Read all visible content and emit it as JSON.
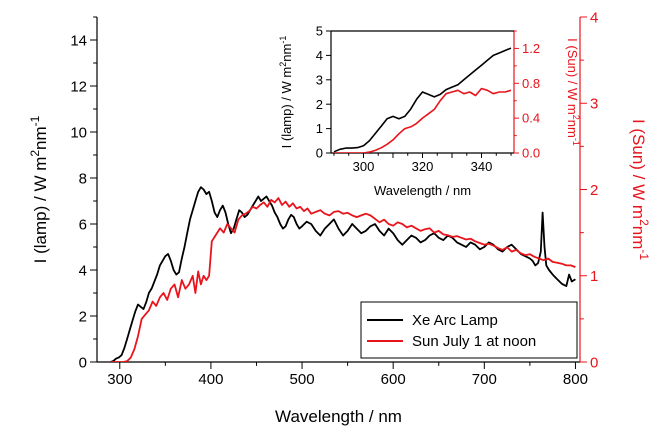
{
  "chart_data": {
    "type": "line",
    "title": "",
    "colors": {
      "lamp": "#000000",
      "sun": "#e8141c"
    },
    "main": {
      "xlabel": "Wavelength / nm",
      "ylabel_left": [
        "I (lamp) / W m",
        "2",
        "nm",
        "-1"
      ],
      "ylabel_right": [
        "I (Sun) / W m",
        "2",
        "nm",
        "-1"
      ],
      "xlim": [
        275,
        805
      ],
      "ylim_left": [
        0,
        15
      ],
      "ylim_right": [
        0,
        4
      ],
      "xticks": [
        300,
        400,
        500,
        600,
        700,
        800
      ],
      "yticks_left": [
        0,
        2,
        4,
        6,
        8,
        10,
        12,
        14
      ],
      "yticks_right": [
        0,
        1,
        2,
        3,
        4
      ],
      "legend_position": "bottom-right",
      "series": [
        {
          "name": "Xe Arc Lamp",
          "axis": "left",
          "x": [
            290,
            293,
            296,
            299,
            302,
            305,
            308,
            311,
            314,
            317,
            320,
            323,
            326,
            329,
            332,
            335,
            338,
            341,
            344,
            347,
            350,
            353,
            356,
            359,
            362,
            365,
            368,
            371,
            374,
            377,
            380,
            383,
            386,
            389,
            392,
            395,
            398,
            401,
            404,
            407,
            410,
            413,
            416,
            419,
            422,
            425,
            428,
            431,
            434,
            437,
            440,
            443,
            446,
            449,
            452,
            455,
            458,
            461,
            464,
            467,
            470,
            473,
            476,
            479,
            482,
            485,
            488,
            491,
            494,
            497,
            500,
            505,
            510,
            515,
            520,
            525,
            530,
            535,
            540,
            545,
            550,
            555,
            560,
            565,
            570,
            575,
            580,
            585,
            590,
            595,
            600,
            605,
            610,
            615,
            620,
            625,
            630,
            635,
            640,
            645,
            650,
            655,
            660,
            665,
            670,
            675,
            680,
            685,
            690,
            695,
            700,
            705,
            710,
            715,
            720,
            725,
            730,
            735,
            740,
            745,
            750,
            753,
            756,
            759,
            762,
            764,
            766,
            768,
            771,
            775,
            780,
            785,
            790,
            793,
            796,
            800
          ],
          "y": [
            0.0,
            0.05,
            0.15,
            0.2,
            0.3,
            0.6,
            1.0,
            1.4,
            1.8,
            2.2,
            2.5,
            2.4,
            2.3,
            2.6,
            3.0,
            3.2,
            3.5,
            3.8,
            4.2,
            4.4,
            4.6,
            4.7,
            4.4,
            4.0,
            3.8,
            3.9,
            4.5,
            5.0,
            5.6,
            6.2,
            6.6,
            7.0,
            7.4,
            7.6,
            7.5,
            7.3,
            7.4,
            7.0,
            6.5,
            6.3,
            6.6,
            6.8,
            6.5,
            6.0,
            5.6,
            5.8,
            6.2,
            6.6,
            6.5,
            6.3,
            6.4,
            6.6,
            6.8,
            7.0,
            7.2,
            7.0,
            7.1,
            7.2,
            7.0,
            6.8,
            6.5,
            6.3,
            6.0,
            5.8,
            5.9,
            6.2,
            6.4,
            6.3,
            6.0,
            5.8,
            5.9,
            6.1,
            6.0,
            5.7,
            5.5,
            5.8,
            6.0,
            6.2,
            5.8,
            5.5,
            5.7,
            6.0,
            5.8,
            5.6,
            5.7,
            5.9,
            6.0,
            5.7,
            5.5,
            5.8,
            5.6,
            5.3,
            5.1,
            5.3,
            5.5,
            5.4,
            5.2,
            5.3,
            5.5,
            5.6,
            5.4,
            5.3,
            5.5,
            5.4,
            5.2,
            5.1,
            5.0,
            5.2,
            5.1,
            4.9,
            5.0,
            5.2,
            5.1,
            4.9,
            4.8,
            5.0,
            5.1,
            4.9,
            4.7,
            4.6,
            4.5,
            4.4,
            4.2,
            4.3,
            4.8,
            6.5,
            5.0,
            4.2,
            4.0,
            3.8,
            3.6,
            3.4,
            3.3,
            3.8,
            3.5,
            3.6
          ]
        },
        {
          "name": "Sun July 1 at noon",
          "axis": "right",
          "x": [
            290,
            295,
            300,
            304,
            308,
            312,
            316,
            320,
            324,
            328,
            332,
            336,
            340,
            344,
            348,
            352,
            356,
            360,
            364,
            368,
            372,
            376,
            380,
            383,
            386,
            389,
            392,
            395,
            398,
            401,
            404,
            407,
            410,
            414,
            418,
            422,
            426,
            430,
            434,
            438,
            442,
            446,
            450,
            454,
            458,
            462,
            466,
            470,
            474,
            478,
            482,
            486,
            490,
            494,
            498,
            502,
            506,
            510,
            515,
            520,
            525,
            530,
            535,
            540,
            545,
            550,
            555,
            560,
            565,
            570,
            575,
            580,
            585,
            590,
            595,
            600,
            605,
            610,
            615,
            620,
            625,
            630,
            635,
            640,
            645,
            650,
            655,
            660,
            665,
            670,
            675,
            680,
            685,
            690,
            695,
            700,
            705,
            710,
            715,
            720,
            725,
            730,
            735,
            740,
            745,
            750,
            755,
            760,
            765,
            770,
            775,
            780,
            785,
            790,
            795,
            800
          ],
          "y": [
            0.0,
            0.0,
            0.0,
            0.0,
            0.01,
            0.05,
            0.15,
            0.3,
            0.5,
            0.55,
            0.6,
            0.7,
            0.65,
            0.75,
            0.8,
            0.72,
            0.85,
            0.9,
            0.75,
            0.95,
            0.85,
            0.9,
            1.0,
            0.8,
            1.05,
            0.9,
            1.0,
            0.95,
            1.0,
            1.4,
            1.45,
            1.5,
            1.55,
            1.5,
            1.6,
            1.55,
            1.5,
            1.65,
            1.7,
            1.72,
            1.75,
            1.8,
            1.78,
            1.82,
            1.85,
            1.8,
            1.88,
            1.85,
            1.9,
            1.82,
            1.86,
            1.8,
            1.84,
            1.78,
            1.8,
            1.75,
            1.78,
            1.72,
            1.74,
            1.76,
            1.72,
            1.7,
            1.74,
            1.75,
            1.72,
            1.73,
            1.7,
            1.68,
            1.7,
            1.72,
            1.7,
            1.66,
            1.62,
            1.65,
            1.6,
            1.58,
            1.62,
            1.6,
            1.56,
            1.58,
            1.55,
            1.52,
            1.54,
            1.55,
            1.5,
            1.52,
            1.48,
            1.47,
            1.45,
            1.46,
            1.44,
            1.42,
            1.43,
            1.4,
            1.38,
            1.36,
            1.37,
            1.35,
            1.32,
            1.3,
            1.33,
            1.28,
            1.3,
            1.26,
            1.24,
            1.25,
            1.22,
            1.2,
            1.18,
            1.2,
            1.16,
            1.15,
            1.14,
            1.12,
            1.12,
            1.1
          ]
        }
      ]
    },
    "inset": {
      "xlabel": "Wavelength / nm",
      "ylabel_left": [
        "I (lamp) / W m",
        "2",
        "nm",
        "-1"
      ],
      "ylabel_right": [
        "I (Sun) / W m",
        "2",
        "nm",
        "-1"
      ],
      "xlim": [
        289,
        351
      ],
      "ylim_left": [
        0,
        5
      ],
      "ylim_right": [
        0,
        1.4
      ],
      "xticks": [
        300,
        310,
        320,
        330,
        340
      ],
      "xtick_labels": [
        "300",
        "",
        "320",
        "",
        "340"
      ],
      "yticks_left": [
        0,
        1,
        2,
        3,
        4,
        5
      ],
      "yticks_right": [
        0.0,
        0.4,
        0.8,
        1.2
      ],
      "ytick_labels_right": [
        "0.0",
        "0.4",
        "0.8",
        "1.2"
      ],
      "series": [
        {
          "name": "Xe Arc Lamp",
          "axis": "left",
          "x": [
            290,
            292,
            294,
            296,
            298,
            300,
            302,
            304,
            306,
            308,
            310,
            312,
            314,
            316,
            318,
            320,
            322,
            324,
            326,
            328,
            330,
            332,
            334,
            336,
            338,
            340,
            342,
            344,
            346,
            348,
            350
          ],
          "y": [
            0.05,
            0.15,
            0.2,
            0.2,
            0.22,
            0.3,
            0.5,
            0.8,
            1.1,
            1.4,
            1.5,
            1.4,
            1.5,
            1.8,
            2.2,
            2.5,
            2.4,
            2.3,
            2.4,
            2.6,
            2.7,
            2.8,
            3.0,
            3.2,
            3.4,
            3.6,
            3.8,
            4.0,
            4.1,
            4.2,
            4.3
          ]
        },
        {
          "name": "Sun July 1 at noon",
          "axis": "right",
          "x": [
            290,
            292,
            294,
            296,
            298,
            300,
            302,
            304,
            306,
            308,
            310,
            312,
            314,
            316,
            318,
            320,
            322,
            324,
            326,
            328,
            330,
            332,
            334,
            336,
            338,
            340,
            342,
            344,
            346,
            348,
            350
          ],
          "y": [
            0.0,
            0.0,
            0.0,
            0.0,
            0.0,
            0.0,
            0.01,
            0.03,
            0.06,
            0.1,
            0.15,
            0.22,
            0.28,
            0.3,
            0.34,
            0.4,
            0.45,
            0.5,
            0.6,
            0.68,
            0.7,
            0.72,
            0.68,
            0.7,
            0.66,
            0.74,
            0.72,
            0.68,
            0.7,
            0.7,
            0.72
          ]
        }
      ]
    }
  }
}
